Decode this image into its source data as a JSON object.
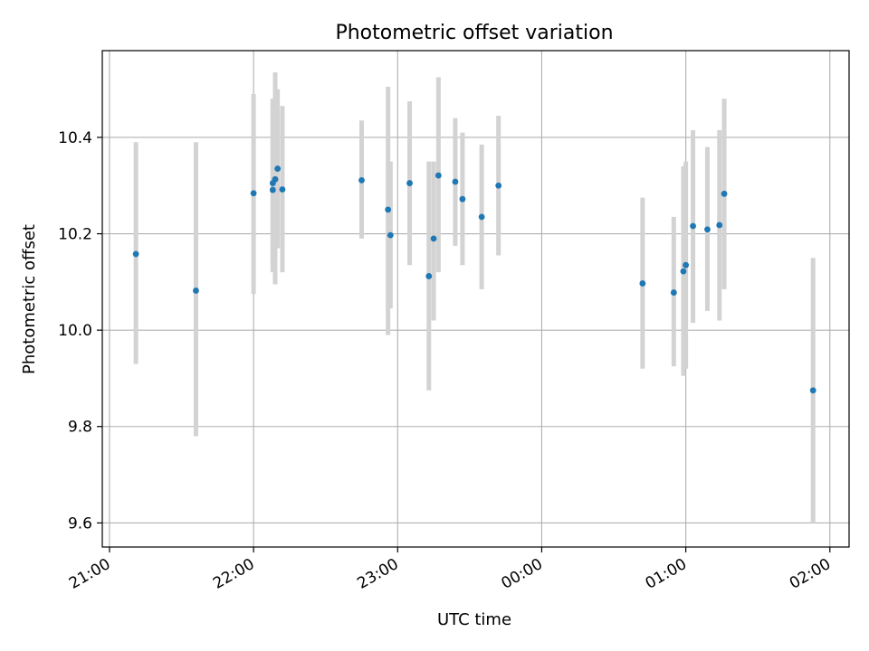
{
  "chart_data": {
    "type": "scatter",
    "title": "Photometric offset variation",
    "xlabel": "UTC time",
    "ylabel": "Photometric offset",
    "x_unit": "time",
    "xlim": [
      "20:57",
      "02:08"
    ],
    "ylim": [
      9.55,
      10.58
    ],
    "grid": true,
    "x_ticks": [
      "21:00",
      "22:00",
      "23:00",
      "00:00",
      "01:00",
      "02:00"
    ],
    "y_ticks": [
      "9.6",
      "9.8",
      "10.0",
      "10.2",
      "10.4"
    ],
    "colors": {
      "point": "#1f77b4",
      "error_bar": "#d3d3d3",
      "grid": "#b0b0b0",
      "axes": "#000000"
    },
    "points": [
      {
        "x": "21:11",
        "y": 10.158,
        "ylow": 9.93,
        "yhigh": 10.39
      },
      {
        "x": "21:36",
        "y": 10.082,
        "ylow": 9.78,
        "yhigh": 10.39
      },
      {
        "x": "22:00",
        "y": 10.284,
        "ylow": 10.075,
        "yhigh": 10.49
      },
      {
        "x": "22:08",
        "y": 10.291,
        "ylow": 10.14,
        "yhigh": 10.48
      },
      {
        "x": "22:08",
        "y": 10.305,
        "ylow": 10.12,
        "yhigh": 10.48
      },
      {
        "x": "22:09",
        "y": 10.313,
        "ylow": 10.095,
        "yhigh": 10.535
      },
      {
        "x": "22:10",
        "y": 10.335,
        "ylow": 10.17,
        "yhigh": 10.5
      },
      {
        "x": "22:12",
        "y": 10.292,
        "ylow": 10.12,
        "yhigh": 10.465
      },
      {
        "x": "22:45",
        "y": 10.311,
        "ylow": 10.19,
        "yhigh": 10.435
      },
      {
        "x": "22:56",
        "y": 10.25,
        "ylow": 9.99,
        "yhigh": 10.505
      },
      {
        "x": "22:57",
        "y": 10.197,
        "ylow": 10.045,
        "yhigh": 10.35
      },
      {
        "x": "23:05",
        "y": 10.305,
        "ylow": 10.135,
        "yhigh": 10.475
      },
      {
        "x": "23:13",
        "y": 10.112,
        "ylow": 9.875,
        "yhigh": 10.35
      },
      {
        "x": "23:15",
        "y": 10.19,
        "ylow": 10.02,
        "yhigh": 10.35
      },
      {
        "x": "23:17",
        "y": 10.321,
        "ylow": 10.12,
        "yhigh": 10.525
      },
      {
        "x": "23:24",
        "y": 10.308,
        "ylow": 10.175,
        "yhigh": 10.44
      },
      {
        "x": "23:27",
        "y": 10.272,
        "ylow": 10.135,
        "yhigh": 10.41
      },
      {
        "x": "23:35",
        "y": 10.235,
        "ylow": 10.085,
        "yhigh": 10.385
      },
      {
        "x": "23:42",
        "y": 10.3,
        "ylow": 10.155,
        "yhigh": 10.445
      },
      {
        "x": "00:42",
        "y": 10.097,
        "ylow": 9.92,
        "yhigh": 10.275
      },
      {
        "x": "00:55",
        "y": 10.078,
        "ylow": 9.925,
        "yhigh": 10.235
      },
      {
        "x": "00:59",
        "y": 10.122,
        "ylow": 9.905,
        "yhigh": 10.34
      },
      {
        "x": "01:00",
        "y": 10.135,
        "ylow": 9.92,
        "yhigh": 10.35
      },
      {
        "x": "01:03",
        "y": 10.216,
        "ylow": 10.015,
        "yhigh": 10.415
      },
      {
        "x": "01:09",
        "y": 10.209,
        "ylow": 10.04,
        "yhigh": 10.38
      },
      {
        "x": "01:14",
        "y": 10.218,
        "ylow": 10.02,
        "yhigh": 10.415
      },
      {
        "x": "01:16",
        "y": 10.283,
        "ylow": 10.085,
        "yhigh": 10.48
      },
      {
        "x": "01:53",
        "y": 9.875,
        "ylow": 9.6,
        "yhigh": 10.15
      }
    ]
  }
}
